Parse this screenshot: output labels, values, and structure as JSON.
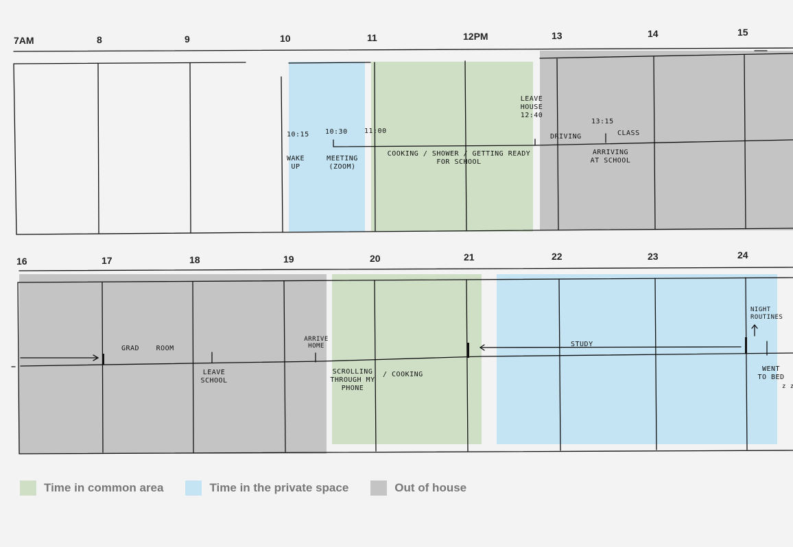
{
  "colors": {
    "common": "#cfdfc6",
    "private": "#c4e4f3",
    "out": "#c4c4c4",
    "line": "#111111",
    "background": "#f3f3f3"
  },
  "row1": {
    "hours": [
      "7AM",
      "8",
      "9",
      "10",
      "11",
      "12PM",
      "13",
      "14",
      "15"
    ],
    "notes": {
      "t1015": "10:15",
      "t1030": "10:30",
      "t1100": "11:00",
      "wake_up": "WAKE UP",
      "meeting": "MEETING (ZOOM)",
      "cooking": "COOKING / SHOWER / GETTING READY FOR SCHOOL",
      "leave_house": "LEAVE HOUSE 12:40",
      "driving": "DRIVING",
      "t1315": "13:15",
      "class": "CLASS",
      "arriving": "ARRIVING AT SCHOOL"
    }
  },
  "row2": {
    "hours": [
      "16",
      "17",
      "18",
      "19",
      "20",
      "21",
      "22",
      "23",
      "24"
    ],
    "notes": {
      "grad_room": "GRAD ROOM",
      "leave_school": "LEAVE SCHOOL",
      "arrive_home": "ARRIVE HOME",
      "scrolling": "SCROLLING THROUGH MY PHONE",
      "cooking2": "/ COOKING",
      "study": "STUDY",
      "night_routines": "NIGHT ROUTINES",
      "went_to_bed": "WENT TO BED",
      "zzz": "z z"
    }
  },
  "legend": {
    "common": "Time in common area",
    "private": "Time in the private space",
    "out": "Out of house"
  }
}
